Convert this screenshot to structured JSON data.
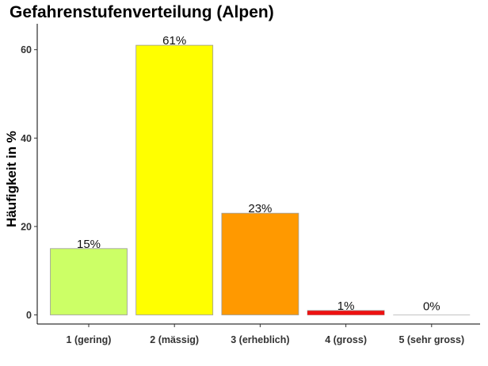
{
  "chart_data": {
    "type": "bar",
    "title": "Gefahrenstufenverteilung (Alpen)",
    "xlabel": "",
    "ylabel": "Häufigkeit in %",
    "categories": [
      "1 (gering)",
      "2 (mässig)",
      "3 (erheblich)",
      "4 (gross)",
      "5 (sehr gross)"
    ],
    "values": [
      15,
      61,
      23,
      1,
      0
    ],
    "data_labels": [
      "15%",
      "61%",
      "23%",
      "1%",
      "0%"
    ],
    "colors": [
      "#ccff66",
      "#ffff00",
      "#ff9900",
      "#ee1111",
      "#cccccc"
    ],
    "ylim": [
      0,
      66
    ],
    "yticks": [
      0,
      20,
      40,
      60
    ],
    "grid": false,
    "legend": "none"
  }
}
